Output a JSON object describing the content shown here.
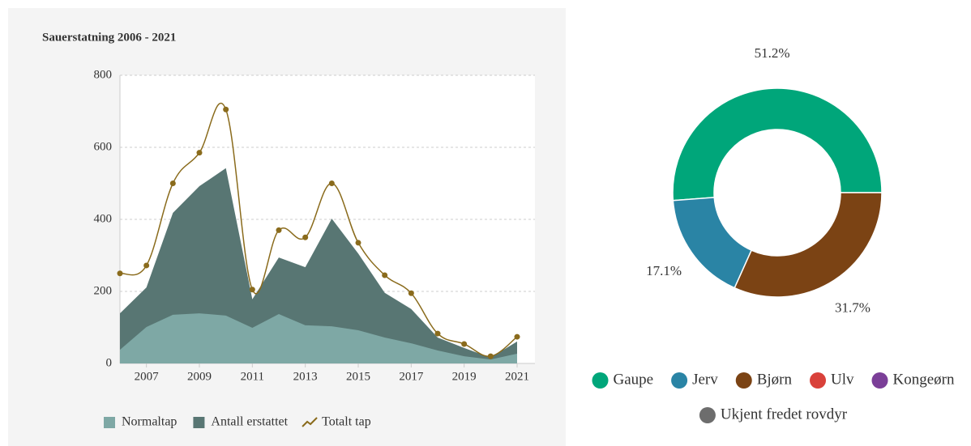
{
  "chart_data": [
    {
      "type": "area",
      "title": "Sauerstatning 2006 - 2021",
      "x": [
        2006,
        2007,
        2008,
        2009,
        2010,
        2011,
        2012,
        2013,
        2014,
        2015,
        2016,
        2017,
        2018,
        2019,
        2020,
        2021
      ],
      "xlim": [
        2006,
        2021
      ],
      "xticks": [
        2007,
        2009,
        2011,
        2013,
        2015,
        2017,
        2019,
        2021
      ],
      "ylim": [
        0,
        800
      ],
      "yticks": [
        0,
        200,
        400,
        600,
        800
      ],
      "grid": true,
      "series": [
        {
          "name": "Normaltap",
          "type": "area",
          "color": "#7ea8a5",
          "values": [
            38,
            101,
            135,
            139,
            133,
            99,
            137,
            106,
            103,
            92,
            72,
            56,
            36,
            20,
            11,
            27
          ]
        },
        {
          "name": "Antall erstattet",
          "type": "area",
          "color": "#587673",
          "values": [
            139,
            211,
            418,
            492,
            542,
            178,
            294,
            267,
            402,
            305,
            196,
            151,
            72,
            43,
            16,
            61
          ]
        },
        {
          "name": "Totalt tap",
          "type": "line",
          "color": "#8a6b1c",
          "values": [
            250,
            272,
            500,
            585,
            705,
            205,
            370,
            350,
            500,
            335,
            245,
            195,
            83,
            54,
            20,
            74
          ]
        }
      ]
    },
    {
      "type": "donut",
      "categories": [
        "Gaupe",
        "Jerv",
        "Bjørn",
        "Ulv",
        "Kongeørn",
        "Ukjent fredet rovdyr"
      ],
      "values": [
        51.2,
        17.1,
        31.7,
        0,
        0,
        0
      ],
      "value_labels": [
        "51.2%",
        "17.1%",
        "31.7%",
        null,
        null,
        null
      ],
      "colors": [
        "#00a67a",
        "#2a84a5",
        "#7b4314",
        "#d9413a",
        "#7b3f98",
        "#6d6d6d"
      ]
    }
  ]
}
